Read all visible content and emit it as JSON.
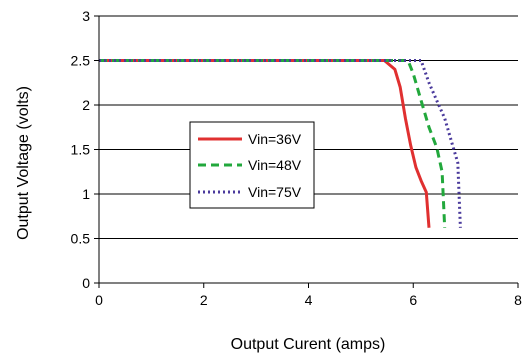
{
  "chart_data": {
    "type": "line",
    "title": "",
    "xlabel": "Output Curent (amps)",
    "ylabel": "Output Voltage (volts)",
    "xlim": [
      0,
      8
    ],
    "ylim": [
      0,
      3
    ],
    "xticks": [
      0,
      2,
      4,
      6,
      8
    ],
    "xtick_labels": [
      "0",
      "2",
      "4",
      "6",
      "8"
    ],
    "yticks": [
      0,
      0.5,
      1,
      1.5,
      2,
      2.5,
      3
    ],
    "ytick_labels": [
      "0",
      "0.5",
      "1",
      "1.5",
      "2",
      "2.5",
      "3"
    ],
    "grid": "horizontal",
    "legend_position": "center-left",
    "series": [
      {
        "name": "Vin=36V",
        "color": "#e03030",
        "style": "solid",
        "points": [
          {
            "x": 0,
            "y": 2.5
          },
          {
            "x": 5.45,
            "y": 2.5
          },
          {
            "x": 5.65,
            "y": 2.4
          },
          {
            "x": 5.75,
            "y": 2.2
          },
          {
            "x": 5.85,
            "y": 1.85
          },
          {
            "x": 5.95,
            "y": 1.55
          },
          {
            "x": 6.05,
            "y": 1.3
          },
          {
            "x": 6.15,
            "y": 1.15
          },
          {
            "x": 6.25,
            "y": 1.02
          },
          {
            "x": 6.3,
            "y": 0.62
          }
        ]
      },
      {
        "name": "Vin=48V",
        "color": "#22a83c",
        "style": "dashed",
        "points": [
          {
            "x": 0,
            "y": 2.5
          },
          {
            "x": 5.9,
            "y": 2.5
          },
          {
            "x": 6.0,
            "y": 2.35
          },
          {
            "x": 6.15,
            "y": 2.05
          },
          {
            "x": 6.3,
            "y": 1.75
          },
          {
            "x": 6.45,
            "y": 1.52
          },
          {
            "x": 6.55,
            "y": 1.25
          },
          {
            "x": 6.6,
            "y": 0.62
          }
        ]
      },
      {
        "name": "Vin=75V",
        "color": "#4a3a9c",
        "style": "dotted",
        "points": [
          {
            "x": 0,
            "y": 2.5
          },
          {
            "x": 6.15,
            "y": 2.5
          },
          {
            "x": 6.3,
            "y": 2.25
          },
          {
            "x": 6.45,
            "y": 2.05
          },
          {
            "x": 6.6,
            "y": 1.85
          },
          {
            "x": 6.75,
            "y": 1.55
          },
          {
            "x": 6.85,
            "y": 1.35
          },
          {
            "x": 6.9,
            "y": 0.62
          }
        ]
      }
    ]
  }
}
